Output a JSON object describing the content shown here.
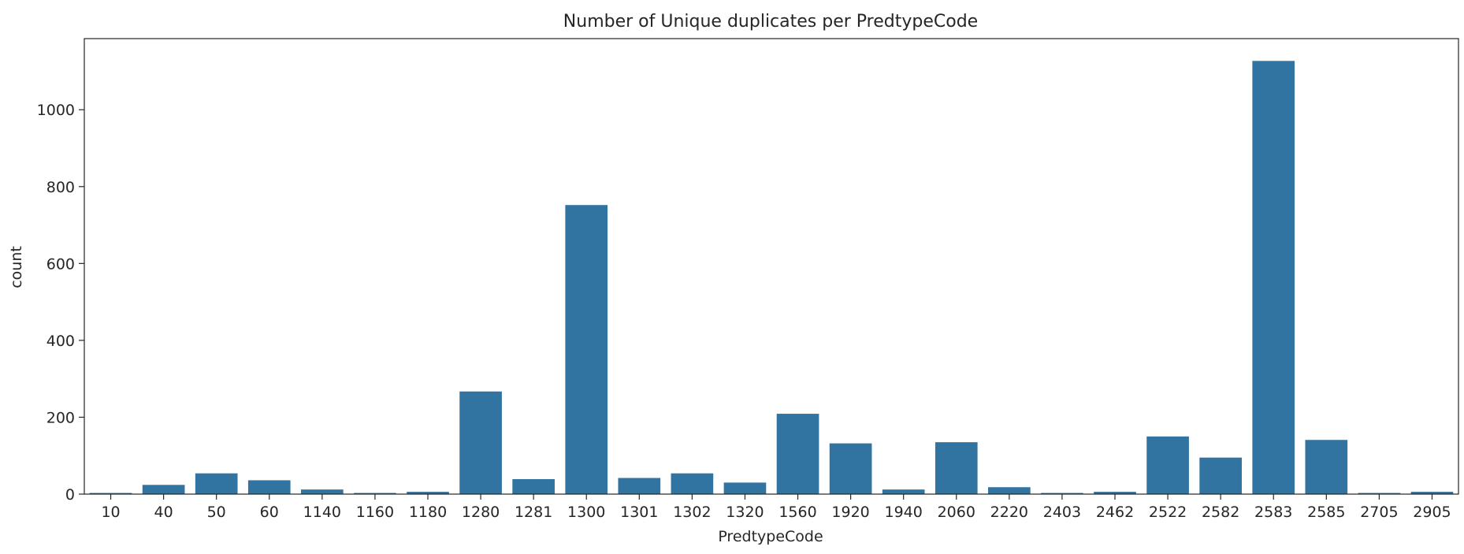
{
  "chart_data": {
    "type": "bar",
    "title": "Number of Unique duplicates per PredtypeCode",
    "xlabel": "PredtypeCode",
    "ylabel": "count",
    "ylim": [
      0,
      1185
    ],
    "yticks": [
      0,
      200,
      400,
      600,
      800,
      1000
    ],
    "grid": false,
    "color": "#3274a1",
    "categories": [
      "10",
      "40",
      "50",
      "60",
      "1140",
      "1160",
      "1180",
      "1280",
      "1281",
      "1300",
      "1301",
      "1302",
      "1320",
      "1560",
      "1920",
      "1940",
      "2060",
      "2220",
      "2403",
      "2462",
      "2522",
      "2582",
      "2583",
      "2585",
      "2705",
      "2905"
    ],
    "values": [
      3,
      24,
      54,
      36,
      12,
      3,
      6,
      267,
      39,
      752,
      42,
      54,
      30,
      209,
      132,
      12,
      135,
      18,
      3,
      6,
      150,
      95,
      1127,
      141,
      3,
      6
    ]
  }
}
